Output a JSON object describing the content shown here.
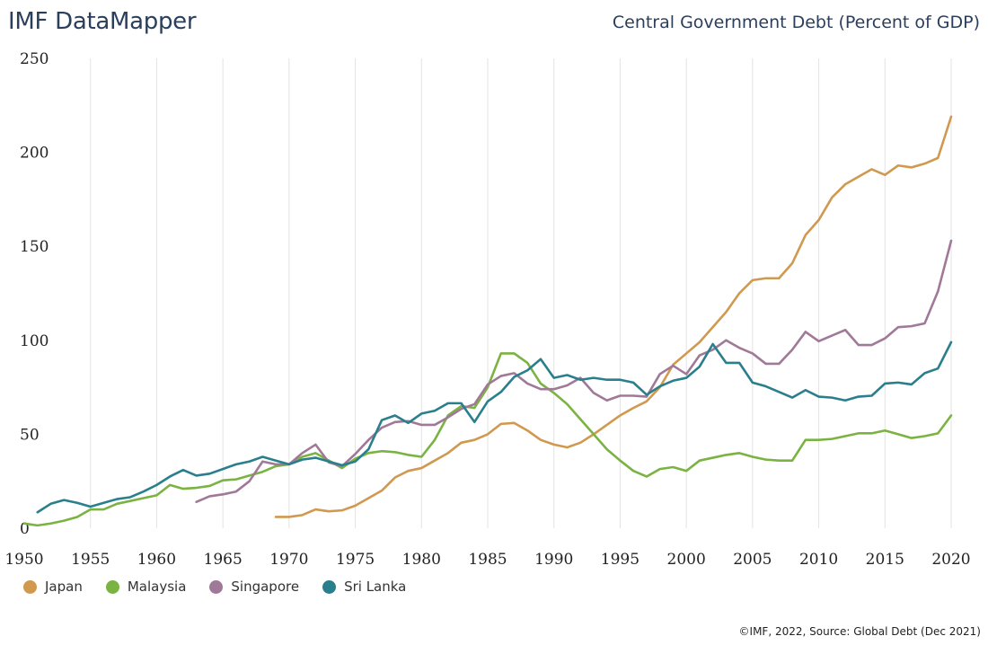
{
  "header": {
    "brand": "IMF DataMapper",
    "title": "Central Government Debt (Percent of GDP)"
  },
  "footer": {
    "credit": "©IMF, 2022, Source: Global Debt (Dec 2021)"
  },
  "chart_data": {
    "type": "line",
    "title": "Central Government Debt (Percent of GDP)",
    "xlabel": "",
    "ylabel": "",
    "xlim": [
      1950,
      2020
    ],
    "ylim": [
      0,
      250
    ],
    "x_ticks": [
      1950,
      1955,
      1960,
      1965,
      1970,
      1975,
      1980,
      1985,
      1990,
      1995,
      2000,
      2005,
      2010,
      2015,
      2020
    ],
    "y_ticks": [
      0,
      50,
      100,
      150,
      200,
      250
    ],
    "grid": "vertical",
    "legend_position": "bottom-left",
    "series": [
      {
        "name": "Japan",
        "color": "#d0994f",
        "points": [
          [
            1969,
            6
          ],
          [
            1970,
            6
          ],
          [
            1971,
            7
          ],
          [
            1972,
            10
          ],
          [
            1973,
            9
          ],
          [
            1974,
            9.5
          ],
          [
            1975,
            12
          ],
          [
            1976,
            16
          ],
          [
            1977,
            20
          ],
          [
            1978,
            27
          ],
          [
            1979,
            30.5
          ],
          [
            1980,
            32
          ],
          [
            1981,
            36
          ],
          [
            1982,
            40
          ],
          [
            1983,
            45.5
          ],
          [
            1984,
            47
          ],
          [
            1985,
            50
          ],
          [
            1986,
            55.5
          ],
          [
            1987,
            56
          ],
          [
            1988,
            52
          ],
          [
            1989,
            47
          ],
          [
            1990,
            44.5
          ],
          [
            1991,
            43
          ],
          [
            1992,
            45.5
          ],
          [
            1993,
            50
          ],
          [
            1994,
            55
          ],
          [
            1995,
            60
          ],
          [
            1996,
            64
          ],
          [
            1997,
            67.5
          ],
          [
            1998,
            75
          ],
          [
            1999,
            87
          ],
          [
            2000,
            93
          ],
          [
            2001,
            99
          ],
          [
            2002,
            107
          ],
          [
            2003,
            115
          ],
          [
            2004,
            125
          ],
          [
            2005,
            132
          ],
          [
            2006,
            133
          ],
          [
            2007,
            133
          ],
          [
            2008,
            141
          ],
          [
            2009,
            156
          ],
          [
            2010,
            164
          ],
          [
            2011,
            176
          ],
          [
            2012,
            183
          ],
          [
            2013,
            187
          ],
          [
            2014,
            191
          ],
          [
            2015,
            188
          ],
          [
            2016,
            193
          ],
          [
            2017,
            192
          ],
          [
            2018,
            194
          ],
          [
            2019,
            197
          ],
          [
            2020,
            219
          ]
        ]
      },
      {
        "name": "Malaysia",
        "color": "#7bb342",
        "points": [
          [
            1950,
            2.5
          ],
          [
            1951,
            1.5
          ],
          [
            1952,
            2.5
          ],
          [
            1953,
            4
          ],
          [
            1954,
            6
          ],
          [
            1955,
            10
          ],
          [
            1956,
            10
          ],
          [
            1957,
            13
          ],
          [
            1958,
            14.5
          ],
          [
            1959,
            16
          ],
          [
            1960,
            17.5
          ],
          [
            1961,
            23
          ],
          [
            1962,
            21
          ],
          [
            1963,
            21.5
          ],
          [
            1964,
            22.5
          ],
          [
            1965,
            25.5
          ],
          [
            1966,
            26
          ],
          [
            1967,
            28
          ],
          [
            1968,
            30
          ],
          [
            1969,
            33
          ],
          [
            1970,
            34
          ],
          [
            1971,
            38
          ],
          [
            1972,
            40
          ],
          [
            1973,
            36
          ],
          [
            1974,
            32
          ],
          [
            1975,
            37
          ],
          [
            1976,
            40
          ],
          [
            1977,
            41
          ],
          [
            1978,
            40.5
          ],
          [
            1979,
            39
          ],
          [
            1980,
            38
          ],
          [
            1981,
            47
          ],
          [
            1982,
            60
          ],
          [
            1983,
            65
          ],
          [
            1984,
            64
          ],
          [
            1985,
            75
          ],
          [
            1986,
            93
          ],
          [
            1987,
            93
          ],
          [
            1988,
            88
          ],
          [
            1989,
            77
          ],
          [
            1990,
            72
          ],
          [
            1991,
            66
          ],
          [
            1992,
            58
          ],
          [
            1993,
            50
          ],
          [
            1994,
            42
          ],
          [
            1995,
            36
          ],
          [
            1996,
            30.5
          ],
          [
            1997,
            27.5
          ],
          [
            1998,
            31.5
          ],
          [
            1999,
            32.5
          ],
          [
            2000,
            30.5
          ],
          [
            2001,
            36
          ],
          [
            2002,
            37.5
          ],
          [
            2003,
            39
          ],
          [
            2004,
            40
          ],
          [
            2005,
            38
          ],
          [
            2006,
            36.5
          ],
          [
            2007,
            36
          ],
          [
            2008,
            36
          ],
          [
            2009,
            47
          ],
          [
            2010,
            47
          ],
          [
            2011,
            47.5
          ],
          [
            2012,
            49
          ],
          [
            2013,
            50.5
          ],
          [
            2014,
            50.5
          ],
          [
            2015,
            52
          ],
          [
            2016,
            50
          ],
          [
            2017,
            48
          ],
          [
            2018,
            49
          ],
          [
            2019,
            50.5
          ],
          [
            2020,
            60
          ]
        ]
      },
      {
        "name": "Singapore",
        "color": "#a07998",
        "points": [
          [
            1963,
            14
          ],
          [
            1964,
            17
          ],
          [
            1965,
            18
          ],
          [
            1966,
            19.5
          ],
          [
            1967,
            25
          ],
          [
            1968,
            35.5
          ],
          [
            1969,
            34
          ],
          [
            1970,
            34
          ],
          [
            1971,
            40
          ],
          [
            1972,
            44.5
          ],
          [
            1973,
            35
          ],
          [
            1974,
            33
          ],
          [
            1975,
            39.5
          ],
          [
            1976,
            47
          ],
          [
            1977,
            53.5
          ],
          [
            1978,
            56.5
          ],
          [
            1979,
            57
          ],
          [
            1980,
            55
          ],
          [
            1981,
            55
          ],
          [
            1982,
            59
          ],
          [
            1983,
            63.5
          ],
          [
            1984,
            66
          ],
          [
            1985,
            76.5
          ],
          [
            1986,
            81
          ],
          [
            1987,
            82.5
          ],
          [
            1988,
            77
          ],
          [
            1989,
            74
          ],
          [
            1990,
            74
          ],
          [
            1991,
            76
          ],
          [
            1992,
            80
          ],
          [
            1993,
            72
          ],
          [
            1994,
            68
          ],
          [
            1995,
            70.5
          ],
          [
            1996,
            70.5
          ],
          [
            1997,
            70
          ],
          [
            1998,
            82
          ],
          [
            1999,
            86.5
          ],
          [
            2000,
            82
          ],
          [
            2001,
            92
          ],
          [
            2002,
            95
          ],
          [
            2003,
            100
          ],
          [
            2004,
            96
          ],
          [
            2005,
            93
          ],
          [
            2006,
            87.5
          ],
          [
            2007,
            87.5
          ],
          [
            2008,
            95
          ],
          [
            2009,
            104.5
          ],
          [
            2010,
            99.5
          ],
          [
            2011,
            102.5
          ],
          [
            2012,
            105.5
          ],
          [
            2013,
            97.5
          ],
          [
            2014,
            97.5
          ],
          [
            2015,
            101
          ],
          [
            2016,
            107
          ],
          [
            2017,
            107.5
          ],
          [
            2018,
            109
          ],
          [
            2019,
            126
          ],
          [
            2020,
            153
          ]
        ]
      },
      {
        "name": "Sri Lanka",
        "color": "#2a7f8d",
        "points": [
          [
            1951,
            8.5
          ],
          [
            1952,
            13
          ],
          [
            1953,
            15
          ],
          [
            1954,
            13.5
          ],
          [
            1955,
            11.5
          ],
          [
            1956,
            13.5
          ],
          [
            1957,
            15.5
          ],
          [
            1958,
            16.5
          ],
          [
            1959,
            19.5
          ],
          [
            1960,
            23
          ],
          [
            1961,
            27.5
          ],
          [
            1962,
            31
          ],
          [
            1963,
            28
          ],
          [
            1964,
            29
          ],
          [
            1965,
            31.5
          ],
          [
            1966,
            34
          ],
          [
            1967,
            35.5
          ],
          [
            1968,
            38
          ],
          [
            1969,
            36
          ],
          [
            1970,
            34
          ],
          [
            1971,
            36.5
          ],
          [
            1972,
            37.5
          ],
          [
            1973,
            35.5
          ],
          [
            1974,
            33.5
          ],
          [
            1975,
            35.5
          ],
          [
            1976,
            42
          ],
          [
            1977,
            57.5
          ],
          [
            1978,
            60
          ],
          [
            1979,
            56
          ],
          [
            1980,
            61
          ],
          [
            1981,
            62.5
          ],
          [
            1982,
            66.5
          ],
          [
            1983,
            66.5
          ],
          [
            1984,
            56.5
          ],
          [
            1985,
            67.5
          ],
          [
            1986,
            72.5
          ],
          [
            1987,
            80.5
          ],
          [
            1988,
            84
          ],
          [
            1989,
            90
          ],
          [
            1990,
            80
          ],
          [
            1991,
            81.5
          ],
          [
            1992,
            79
          ],
          [
            1993,
            80
          ],
          [
            1994,
            79
          ],
          [
            1995,
            79
          ],
          [
            1996,
            77.5
          ],
          [
            1997,
            71
          ],
          [
            1998,
            75.5
          ],
          [
            1999,
            78.5
          ],
          [
            2000,
            80
          ],
          [
            2001,
            86
          ],
          [
            2002,
            98
          ],
          [
            2003,
            88
          ],
          [
            2004,
            88
          ],
          [
            2005,
            77.5
          ],
          [
            2006,
            75.5
          ],
          [
            2007,
            72.5
          ],
          [
            2008,
            69.5
          ],
          [
            2009,
            73.5
          ],
          [
            2010,
            70
          ],
          [
            2011,
            69.5
          ],
          [
            2012,
            68
          ],
          [
            2013,
            70
          ],
          [
            2014,
            70.5
          ],
          [
            2015,
            77
          ],
          [
            2016,
            77.5
          ],
          [
            2017,
            76.5
          ],
          [
            2018,
            82.5
          ],
          [
            2019,
            85
          ],
          [
            2020,
            99
          ]
        ]
      }
    ]
  }
}
